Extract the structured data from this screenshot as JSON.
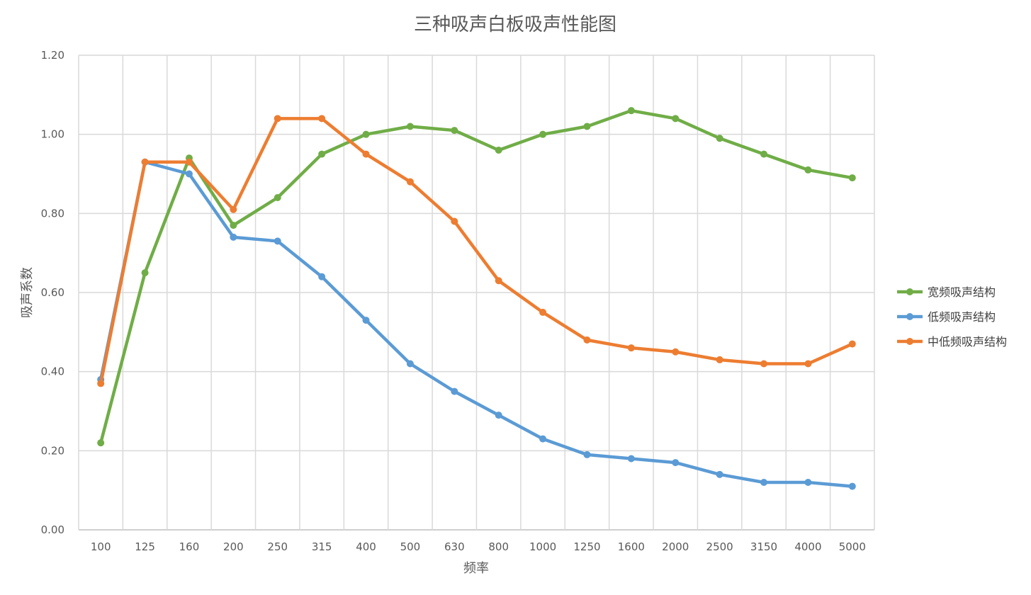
{
  "chart_data": {
    "type": "line",
    "title": "三种吸声白板吸声性能图",
    "xlabel": "频率",
    "ylabel": "吸声系数",
    "ylim": [
      0,
      1.2
    ],
    "y_ticks": [
      "0.00",
      "0.20",
      "0.40",
      "0.60",
      "0.80",
      "1.00",
      "1.20"
    ],
    "grid": true,
    "legend_position": "right",
    "categories": [
      "100",
      "125",
      "160",
      "200",
      "250",
      "315",
      "400",
      "500",
      "630",
      "800",
      "1000",
      "1250",
      "1600",
      "2000",
      "2500",
      "3150",
      "4000",
      "5000"
    ],
    "series": [
      {
        "name": "宽频吸声结构",
        "color": "#70ad47",
        "values": [
          0.22,
          0.65,
          0.94,
          0.77,
          0.84,
          0.95,
          1.0,
          1.02,
          1.01,
          0.96,
          1.0,
          1.02,
          1.06,
          1.04,
          0.99,
          0.95,
          0.91,
          0.89
        ]
      },
      {
        "name": "低频吸声结构",
        "color": "#5b9bd5",
        "values": [
          0.38,
          0.93,
          0.9,
          0.74,
          0.73,
          0.64,
          0.53,
          0.42,
          0.35,
          0.29,
          0.23,
          0.19,
          0.18,
          0.17,
          0.14,
          0.12,
          0.12,
          0.11
        ]
      },
      {
        "name": "中低频吸声结构",
        "color": "#ed7d31",
        "values": [
          0.37,
          0.93,
          0.93,
          0.81,
          1.04,
          1.04,
          0.95,
          0.88,
          0.78,
          0.63,
          0.55,
          0.48,
          0.46,
          0.45,
          0.43,
          0.42,
          0.42,
          0.47
        ]
      }
    ]
  }
}
